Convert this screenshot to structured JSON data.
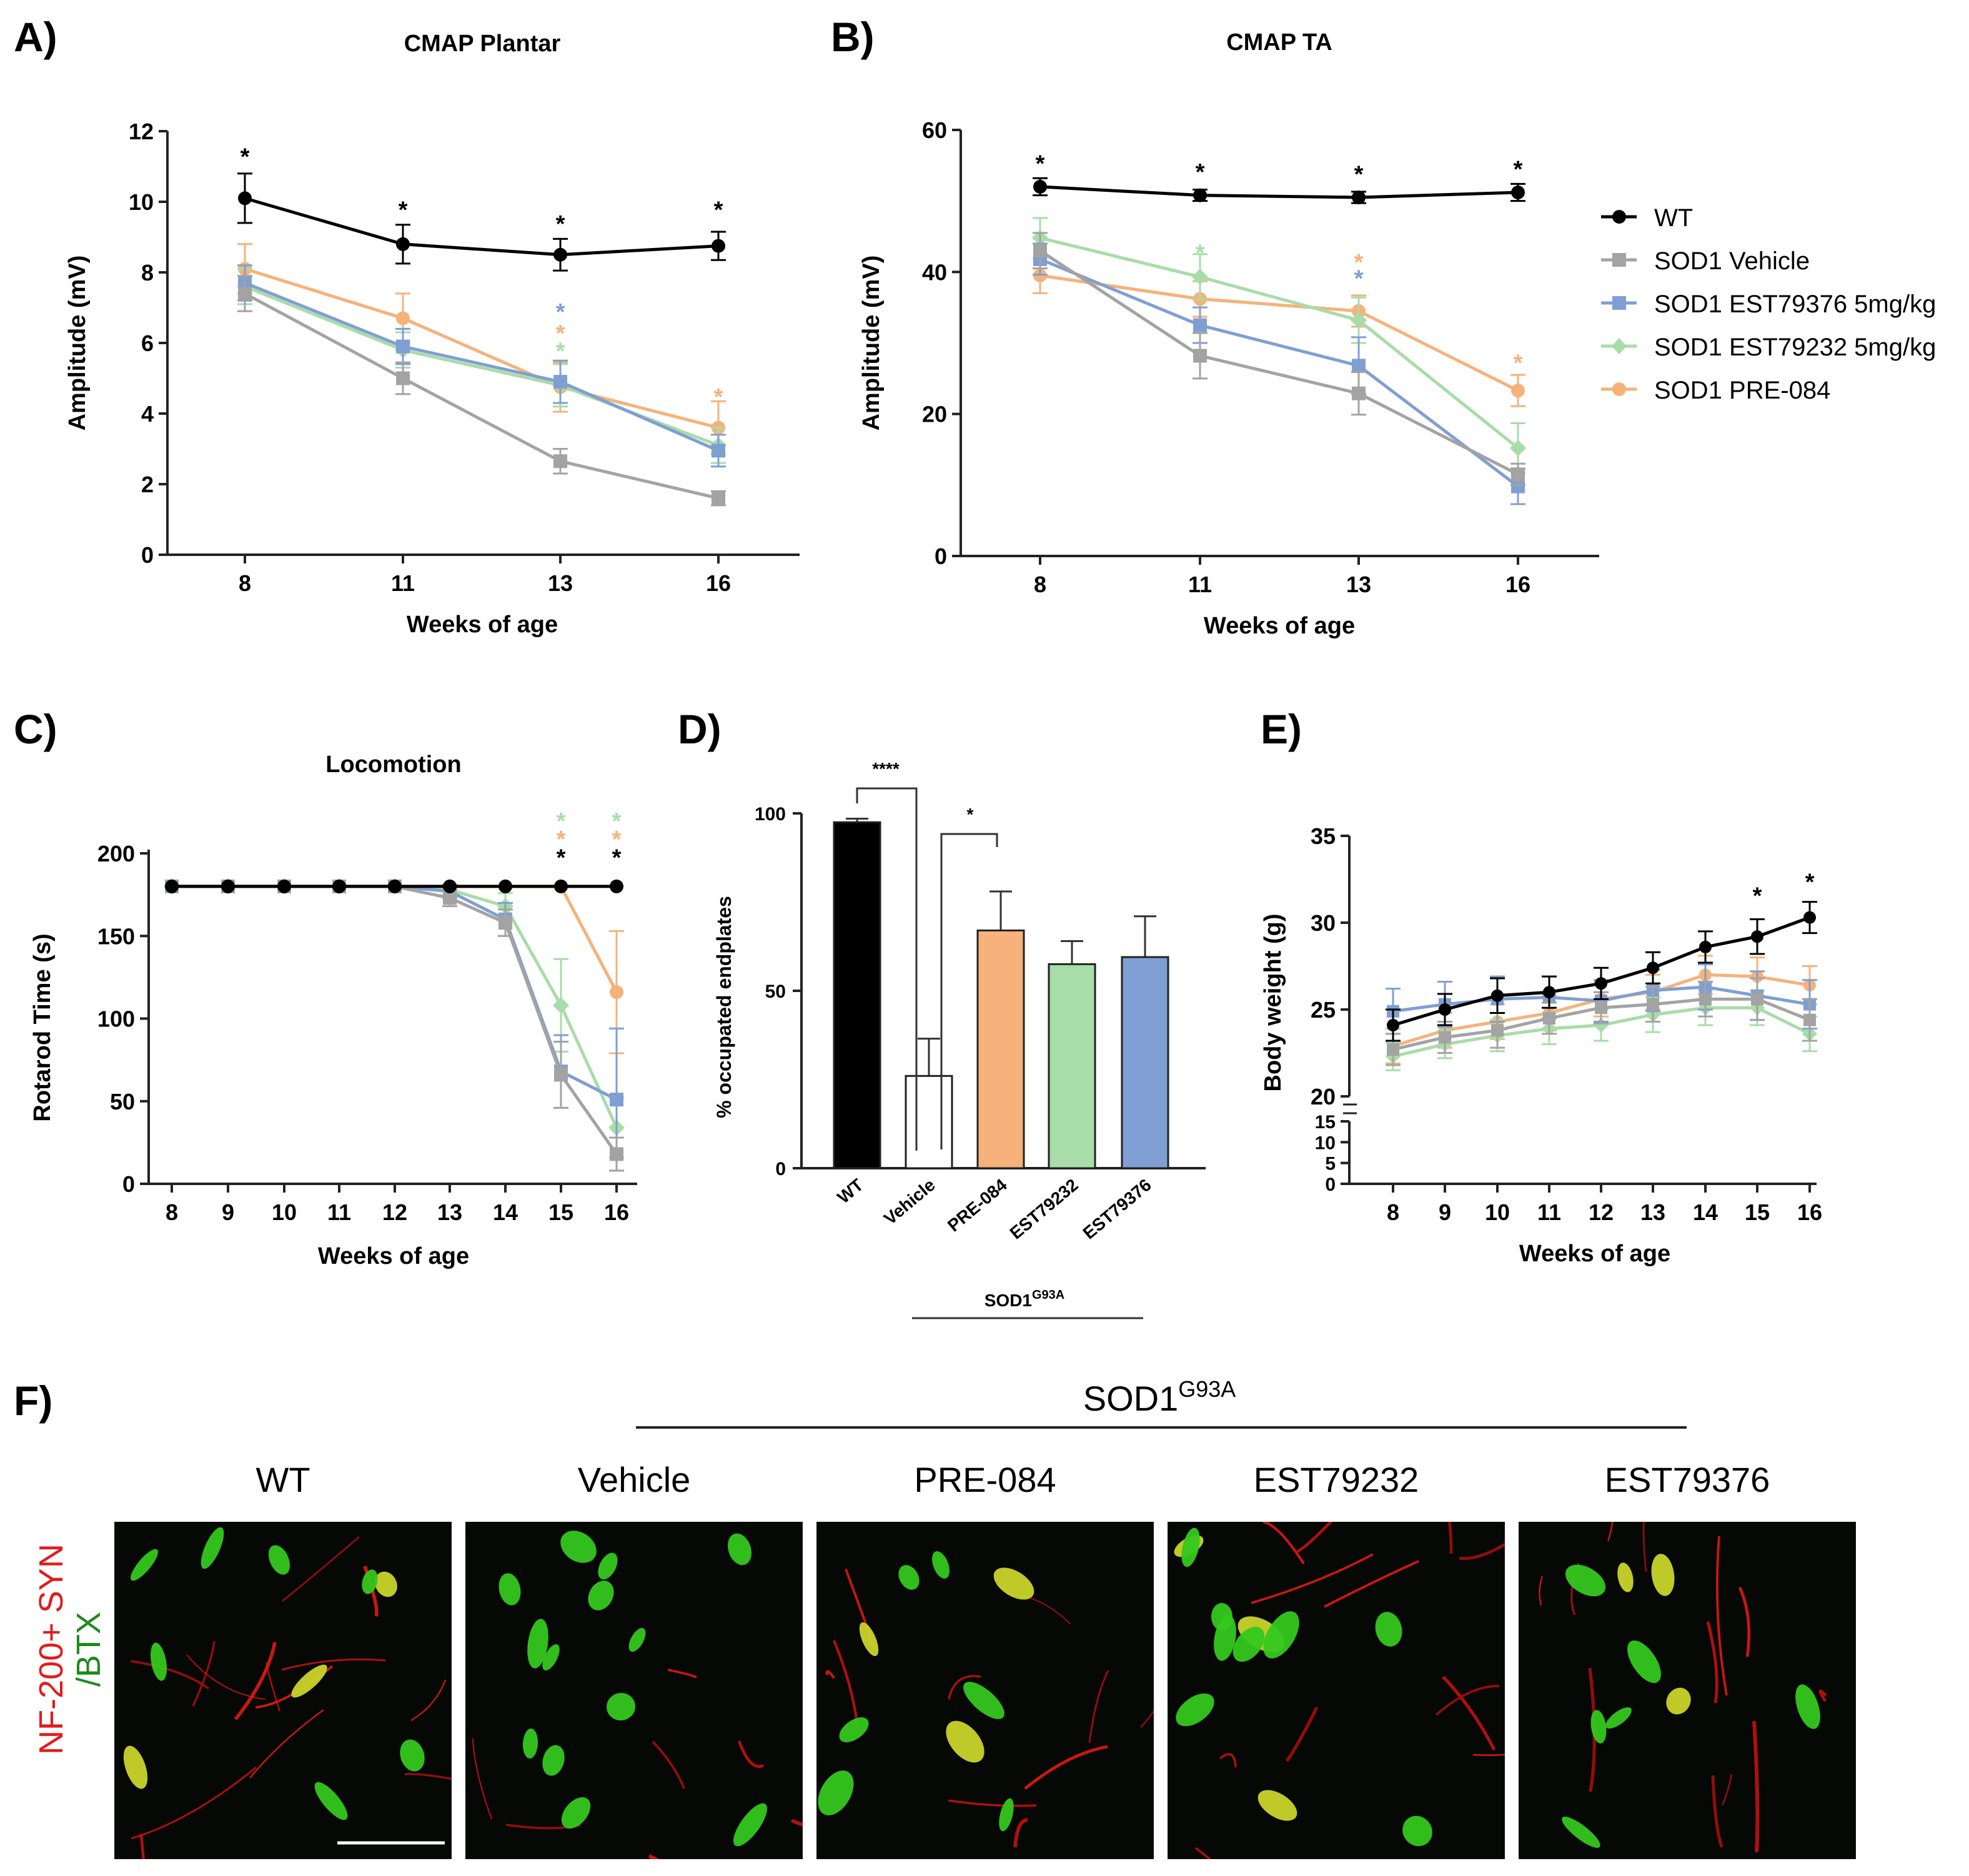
{
  "colors": {
    "wt": "#000000",
    "veh": "#a3a3a3",
    "est376": "#7f9fd3",
    "est232": "#a8dca8",
    "pre": "#f6b27a"
  },
  "panels": {
    "a": "A)",
    "b": "B)",
    "c": "C)",
    "d": "D)",
    "e": "E)",
    "f": "F)"
  },
  "legend": [
    "WT",
    "SOD1 Vehicle",
    "SOD1 EST79376 5mg/kg",
    "SOD1 EST79232 5mg/kg",
    "SOD1 PRE-084"
  ],
  "chart_data": [
    {
      "id": "A",
      "type": "line",
      "title": "CMAP Plantar",
      "xlabel": "Weeks of age",
      "ylabel": "Amplitude (mV)",
      "ylim": [
        0,
        12
      ],
      "yticks": [
        "0",
        "2",
        "4",
        "6",
        "8",
        "10",
        "12"
      ],
      "categories": [
        "8",
        "11",
        "13",
        "16"
      ],
      "series": [
        {
          "name": "WT",
          "values": [
            10.1,
            8.8,
            8.5,
            8.75
          ],
          "err": [
            0.7,
            0.55,
            0.45,
            0.4
          ]
        },
        {
          "name": "SOD1 Vehicle",
          "values": [
            7.4,
            5.0,
            2.65,
            1.6
          ],
          "err": [
            0.5,
            0.45,
            0.35,
            0.2
          ]
        },
        {
          "name": "SOD1 EST79376 5mg/kg",
          "values": [
            7.7,
            5.9,
            4.9,
            2.95
          ],
          "err": [
            0.5,
            0.5,
            0.6,
            0.45
          ]
        },
        {
          "name": "SOD1 EST79232 5mg/kg",
          "values": [
            7.6,
            5.8,
            4.8,
            3.1
          ],
          "err": [
            0.5,
            0.5,
            0.6,
            0.5
          ]
        },
        {
          "name": "SOD1 PRE-084",
          "values": [
            8.1,
            6.7,
            4.75,
            3.6
          ],
          "err": [
            0.7,
            0.7,
            0.7,
            0.75
          ]
        }
      ],
      "stars": [
        {
          "x": "8",
          "y": 11.3,
          "series": "WT"
        },
        {
          "x": "11",
          "y": 9.8,
          "series": "WT"
        },
        {
          "x": "13",
          "y": 9.4,
          "series": "WT"
        },
        {
          "x": "16",
          "y": 9.8,
          "series": "WT"
        },
        {
          "x": "13",
          "y": 6.9,
          "series": "SOD1 EST79376 5mg/kg"
        },
        {
          "x": "13",
          "y": 6.3,
          "series": "SOD1 PRE-084"
        },
        {
          "x": "13",
          "y": 5.8,
          "series": "SOD1 EST79232 5mg/kg"
        },
        {
          "x": "16",
          "y": 4.5,
          "series": "SOD1 PRE-084"
        }
      ]
    },
    {
      "id": "B",
      "type": "line",
      "title": "CMAP TA",
      "xlabel": "Weeks of age",
      "ylabel": "Amplitude (mV)",
      "ylim": [
        0,
        60
      ],
      "yticks": [
        "0",
        "20",
        "40",
        "60"
      ],
      "categories": [
        "8",
        "11",
        "13",
        "16"
      ],
      "series": [
        {
          "name": "WT",
          "values": [
            52,
            50.8,
            50.5,
            51.2
          ],
          "err": [
            1.2,
            0.8,
            0.8,
            1.2
          ]
        },
        {
          "name": "SOD1 Vehicle",
          "values": [
            43,
            28.2,
            22.9,
            11.5
          ],
          "err": [
            2.5,
            3.2,
            3,
            1.5
          ]
        },
        {
          "name": "SOD1 EST79376 5mg/kg",
          "values": [
            41.8,
            32.5,
            26.8,
            9.8
          ],
          "err": [
            2.2,
            2.5,
            4,
            2.5
          ]
        },
        {
          "name": "SOD1 EST79232 5mg/kg",
          "values": [
            44.8,
            39.3,
            33.2,
            15.2
          ],
          "err": [
            2.8,
            3.2,
            3.2,
            3.5
          ]
        },
        {
          "name": "SOD1 PRE-084",
          "values": [
            39.5,
            36.2,
            34.5,
            23.3
          ],
          "err": [
            2.5,
            2.5,
            2.2,
            2.2
          ]
        }
      ],
      "stars": [
        {
          "x": "8",
          "y": 55.4,
          "series": "WT"
        },
        {
          "x": "11",
          "y": 54.2,
          "series": "WT"
        },
        {
          "x": "13",
          "y": 53.9,
          "series": "WT"
        },
        {
          "x": "16",
          "y": 54.6,
          "series": "WT"
        },
        {
          "x": "11",
          "y": 42.8,
          "series": "SOD1 EST79232 5mg/kg"
        },
        {
          "x": "13",
          "y": 41.5,
          "series": "SOD1 PRE-084"
        },
        {
          "x": "13",
          "y": 39.2,
          "series": "SOD1 EST79376 5mg/kg"
        },
        {
          "x": "16",
          "y": 27.3,
          "series": "SOD1 PRE-084"
        }
      ]
    },
    {
      "id": "C",
      "type": "line",
      "title": "Locomotion",
      "xlabel": "Weeks of age",
      "ylabel": "Rotarod Time (s)",
      "ylim": [
        0,
        200
      ],
      "yticks": [
        "0",
        "50",
        "100",
        "150",
        "200"
      ],
      "categories": [
        "8",
        "9",
        "10",
        "11",
        "12",
        "13",
        "14",
        "15",
        "16"
      ],
      "series": [
        {
          "name": "WT",
          "values": [
            180,
            180,
            180,
            180,
            180,
            180,
            180,
            180,
            180
          ],
          "err": [
            0,
            0,
            0,
            0,
            0,
            0,
            0,
            0,
            0
          ]
        },
        {
          "name": "SOD1 Vehicle",
          "values": [
            180,
            180,
            180,
            180,
            180,
            173,
            158,
            66,
            18
          ],
          "err": [
            0,
            0,
            0,
            0,
            0,
            5,
            8,
            20,
            10
          ]
        },
        {
          "name": "SOD1 EST79376 5mg/kg",
          "values": [
            180,
            180,
            180,
            180,
            180,
            177,
            160,
            68,
            51
          ],
          "err": [
            0,
            0,
            0,
            0,
            0,
            4,
            10,
            22,
            43
          ]
        },
        {
          "name": "SOD1 EST79232 5mg/kg",
          "values": [
            180,
            180,
            180,
            180,
            180,
            178,
            168,
            108,
            34
          ],
          "err": [
            0,
            0,
            0,
            0,
            0,
            3,
            8,
            28,
            18
          ]
        },
        {
          "name": "SOD1 PRE-084",
          "values": [
            180,
            180,
            180,
            180,
            180,
            180,
            180,
            180,
            116
          ],
          "err": [
            0,
            0,
            0,
            0,
            0,
            0,
            0,
            0,
            37
          ]
        }
      ],
      "stars": [
        {
          "x": "15",
          "y": 198,
          "series": "WT"
        },
        {
          "x": "16",
          "y": 198,
          "series": "WT"
        },
        {
          "x": "15",
          "y": 209,
          "series": "SOD1 PRE-084"
        },
        {
          "x": "16",
          "y": 209,
          "series": "SOD1 PRE-084"
        },
        {
          "x": "15",
          "y": 220,
          "series": "SOD1 EST79232 5mg/kg"
        },
        {
          "x": "16",
          "y": 220,
          "series": "SOD1 EST79232 5mg/kg"
        }
      ]
    },
    {
      "id": "D",
      "type": "bar",
      "title": "",
      "xlabel": "",
      "ylabel": "% occupated endplates",
      "ylim": [
        0,
        100
      ],
      "yticks": [
        "0",
        "50",
        "100"
      ],
      "categories": [
        "WT",
        "Vehicle",
        "PRE-084",
        "EST79232",
        "EST79376"
      ],
      "values": [
        97.5,
        26,
        67,
        57.5,
        59.5
      ],
      "err": [
        1,
        10.5,
        11,
        6.5,
        11.5
      ],
      "fills": [
        "#000000",
        "#ffffff",
        "#f6b27a",
        "#a8dca8",
        "#7f9fd3"
      ],
      "group_label": "SOD1",
      "group_label_sup": "G93A",
      "sig": [
        {
          "from": "WT",
          "to": "Vehicle",
          "label": "****"
        },
        {
          "from": "Vehicle",
          "to": "PRE-084",
          "label": "*"
        }
      ]
    },
    {
      "id": "E",
      "type": "line",
      "title": "",
      "xlabel": "Weeks of age",
      "ylabel": "Body weight (g)",
      "ylim_upper": [
        20,
        35
      ],
      "ylim_lower": [
        0,
        15
      ],
      "yticks_upper": [
        "20",
        "25",
        "30",
        "35"
      ],
      "yticks_lower": [
        "0",
        "5",
        "10",
        "15"
      ],
      "categories": [
        "8",
        "9",
        "10",
        "11",
        "12",
        "13",
        "14",
        "15",
        "16"
      ],
      "series": [
        {
          "name": "WT",
          "values": [
            24.1,
            25,
            25.8,
            26,
            26.5,
            27.4,
            28.6,
            29.2,
            30.3
          ],
          "err": [
            0.9,
            0.9,
            1,
            0.9,
            0.9,
            0.9,
            0.9,
            1,
            0.9
          ]
        },
        {
          "name": "SOD1 Vehicle",
          "values": [
            22.7,
            23.4,
            23.8,
            24.5,
            25.1,
            25.3,
            25.6,
            25.6,
            24.4
          ],
          "err": [
            0.9,
            0.9,
            1,
            0.9,
            0.9,
            1,
            1,
            1.2,
            1.2
          ]
        },
        {
          "name": "SOD1 EST79376 5mg/kg",
          "values": [
            24.9,
            25.3,
            25.6,
            25.7,
            25.5,
            26.1,
            26.3,
            25.8,
            25.3
          ],
          "err": [
            1.3,
            1.3,
            1.3,
            1.2,
            1.2,
            1.2,
            1.3,
            1.4,
            1.4
          ]
        },
        {
          "name": "SOD1 EST79232 5mg/kg",
          "values": [
            22.3,
            23,
            23.5,
            23.9,
            24.1,
            24.7,
            25.1,
            25.1,
            23.6
          ],
          "err": [
            0.8,
            0.8,
            0.9,
            0.9,
            0.9,
            1,
            1,
            1,
            1
          ]
        },
        {
          "name": "SOD1 PRE-084",
          "values": [
            22.9,
            23.8,
            24.3,
            24.8,
            25.6,
            26,
            27,
            26.9,
            26.4
          ],
          "err": [
            1,
            1,
            1,
            1,
            1,
            1,
            1.1,
            1.1,
            1.1
          ]
        }
      ],
      "stars": [
        {
          "x": "15",
          "y": 31.6,
          "series": "WT"
        },
        {
          "x": "16",
          "y": 32.4,
          "series": "WT"
        }
      ]
    }
  ],
  "panel_f": {
    "group_label": "SOD1",
    "group_label_sup": "G93A",
    "titles": [
      "WT",
      "Vehicle",
      "PRE-084",
      "EST79232",
      "EST79376"
    ],
    "ylabel_red": "NF-200+ SYN",
    "ylabel_green": "/BTX"
  }
}
